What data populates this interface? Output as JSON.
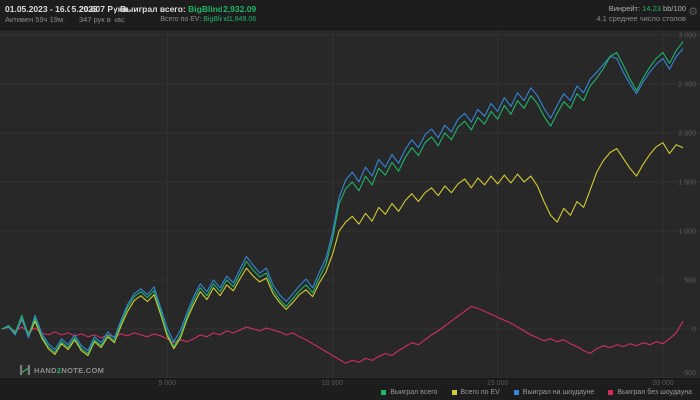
{
  "header": {
    "date_range": "01.05.2023 - 16.05.2023",
    "active_time": "Активен 59ч 19м",
    "hands_title": "20 607 Руки",
    "hands_per_hour": "347 рук в час",
    "won_total_label": "Выиграл всего:",
    "won_total_value": "BigBlind2,932.09",
    "ev_label": "Всего по EV:",
    "ev_value": "BigBlind1,849.06",
    "winrate_label": "Винрейт:",
    "winrate_value": "14.23",
    "winrate_unit": "bb/100",
    "avg_tables": "4.1 среднее число столов"
  },
  "footer": {
    "logo_pre": "HAND",
    "logo_mid": "2",
    "logo_post": "NOTE.COM"
  },
  "colors": {
    "accent_green": "#1eb568",
    "header_bg": "#1d1d1d",
    "chart_bg": "#282828",
    "grid": "#323232",
    "tick_text": "#5a5a5a"
  },
  "chart_data": {
    "type": "line",
    "title": "",
    "xlabel": "hands",
    "ylabel": "big blinds",
    "grid": true,
    "legend_position": "bottom-right",
    "x_range": [
      0,
      20607
    ],
    "y_range": [
      -500,
      3050
    ],
    "x_ticks": [
      {
        "value": 5000,
        "label": "5 000"
      },
      {
        "value": 10000,
        "label": "10 000"
      },
      {
        "value": 15000,
        "label": "15 000"
      },
      {
        "value": 20000,
        "label": "20 000"
      }
    ],
    "y_ticks": [
      {
        "value": 3000,
        "label": "3 000"
      },
      {
        "value": 2500,
        "label": "2 500"
      },
      {
        "value": 2000,
        "label": "2 000"
      },
      {
        "value": 1500,
        "label": "1 500"
      },
      {
        "value": 1000,
        "label": "1 000"
      },
      {
        "value": 500,
        "label": "500"
      },
      {
        "value": 0,
        "label": "0"
      },
      {
        "value": -500,
        "label": "-500"
      }
    ],
    "hands": [
      0,
      200,
      400,
      600,
      800,
      1000,
      1200,
      1400,
      1600,
      1800,
      2000,
      2200,
      2400,
      2600,
      2800,
      3000,
      3200,
      3400,
      3600,
      3800,
      4000,
      4200,
      4400,
      4600,
      4800,
      5000,
      5200,
      5400,
      5600,
      5800,
      6000,
      6200,
      6400,
      6600,
      6800,
      7000,
      7200,
      7400,
      7600,
      7800,
      8000,
      8200,
      8400,
      8600,
      8800,
      9000,
      9200,
      9400,
      9600,
      9800,
      10000,
      10200,
      10400,
      10600,
      10800,
      11000,
      11200,
      11400,
      11600,
      11800,
      12000,
      12200,
      12400,
      12600,
      12800,
      13000,
      13200,
      13400,
      13600,
      13800,
      14000,
      14200,
      14400,
      14600,
      14800,
      15000,
      15200,
      15400,
      15600,
      15800,
      16000,
      16200,
      16400,
      16600,
      16800,
      17000,
      17200,
      17400,
      17600,
      17800,
      18000,
      18200,
      18400,
      18600,
      18800,
      19000,
      19200,
      19400,
      19600,
      19800,
      20000,
      20200,
      20400,
      20607
    ],
    "series": [
      {
        "name": "Выиграл всего",
        "color": "#1eb568",
        "values": [
          0,
          35,
          -40,
          140,
          -60,
          110,
          -70,
          -180,
          -240,
          -130,
          -190,
          -90,
          -200,
          -250,
          -110,
          -170,
          -60,
          -120,
          60,
          220,
          330,
          380,
          320,
          390,
          180,
          -40,
          -180,
          -60,
          130,
          290,
          420,
          340,
          460,
          380,
          500,
          430,
          560,
          690,
          600,
          530,
          570,
          400,
          300,
          230,
          310,
          390,
          450,
          370,
          520,
          660,
          920,
          1280,
          1430,
          1500,
          1410,
          1560,
          1470,
          1640,
          1570,
          1700,
          1610,
          1750,
          1850,
          1770,
          1900,
          1960,
          1870,
          2000,
          1930,
          2060,
          2120,
          2030,
          2160,
          2090,
          2220,
          2140,
          2280,
          2190,
          2330,
          2250,
          2380,
          2300,
          2170,
          2070,
          2200,
          2320,
          2250,
          2400,
          2330,
          2480,
          2560,
          2660,
          2780,
          2820,
          2690,
          2550,
          2430,
          2560,
          2670,
          2760,
          2820,
          2710,
          2840,
          2932.09
        ]
      },
      {
        "name": "Всего по EV",
        "color": "#d4ca32",
        "values": [
          0,
          25,
          -55,
          100,
          -80,
          80,
          -90,
          -200,
          -260,
          -150,
          -210,
          -110,
          -220,
          -270,
          -130,
          -190,
          -80,
          -140,
          30,
          180,
          290,
          340,
          280,
          350,
          150,
          -70,
          -200,
          -90,
          100,
          250,
          380,
          300,
          420,
          340,
          450,
          390,
          510,
          620,
          540,
          480,
          520,
          360,
          270,
          200,
          270,
          350,
          400,
          330,
          470,
          580,
          760,
          1000,
          1090,
          1150,
          1070,
          1180,
          1100,
          1240,
          1170,
          1280,
          1200,
          1310,
          1380,
          1300,
          1390,
          1440,
          1360,
          1460,
          1390,
          1480,
          1530,
          1440,
          1540,
          1470,
          1560,
          1480,
          1570,
          1490,
          1580,
          1500,
          1560,
          1460,
          1300,
          1160,
          1090,
          1230,
          1160,
          1300,
          1240,
          1420,
          1600,
          1720,
          1800,
          1840,
          1740,
          1640,
          1560,
          1680,
          1780,
          1860,
          1900,
          1790,
          1880,
          1849.06
        ]
      },
      {
        "name": "Выиграл на шоудауне",
        "color": "#3585d9",
        "values": [
          0,
          20,
          -60,
          110,
          -90,
          140,
          -40,
          -150,
          -210,
          -100,
          -160,
          -60,
          -170,
          -220,
          -80,
          -140,
          -30,
          -90,
          90,
          250,
          360,
          410,
          350,
          430,
          220,
          10,
          -130,
          -10,
          170,
          330,
          460,
          380,
          500,
          420,
          540,
          470,
          610,
          740,
          650,
          570,
          620,
          450,
          350,
          280,
          360,
          440,
          510,
          420,
          580,
          720,
          980,
          1340,
          1520,
          1600,
          1500,
          1650,
          1560,
          1730,
          1650,
          1780,
          1690,
          1830,
          1930,
          1850,
          1980,
          2040,
          1950,
          2080,
          2010,
          2140,
          2200,
          2110,
          2240,
          2170,
          2300,
          2220,
          2360,
          2270,
          2410,
          2330,
          2460,
          2380,
          2250,
          2150,
          2280,
          2400,
          2330,
          2480,
          2410,
          2550,
          2620,
          2700,
          2780,
          2760,
          2620,
          2500,
          2400,
          2520,
          2620,
          2700,
          2760,
          2650,
          2780,
          2860
        ]
      },
      {
        "name": "Выиграл без шоудауна",
        "color": "#d02f5e",
        "values": [
          0,
          15,
          -20,
          20,
          -30,
          10,
          -40,
          -60,
          -30,
          -60,
          -40,
          -70,
          -50,
          -80,
          -60,
          -90,
          -60,
          -80,
          -50,
          -70,
          -40,
          -60,
          -80,
          -50,
          -70,
          -100,
          -140,
          -110,
          -130,
          -100,
          -60,
          -80,
          -40,
          -60,
          -20,
          -40,
          -10,
          20,
          0,
          -20,
          10,
          -10,
          -30,
          -60,
          -40,
          -80,
          -110,
          -150,
          -190,
          -230,
          -270,
          -310,
          -350,
          -320,
          -340,
          -300,
          -320,
          -280,
          -250,
          -270,
          -220,
          -180,
          -140,
          -160,
          -110,
          -60,
          -20,
          30,
          80,
          130,
          180,
          230,
          210,
          180,
          150,
          120,
          90,
          60,
          20,
          -20,
          -60,
          -90,
          -120,
          -100,
          -130,
          -110,
          -150,
          -180,
          -220,
          -250,
          -200,
          -170,
          -190,
          -160,
          -180,
          -150,
          -170,
          -140,
          -160,
          -130,
          -150,
          -100,
          -40,
          80
        ]
      }
    ]
  }
}
